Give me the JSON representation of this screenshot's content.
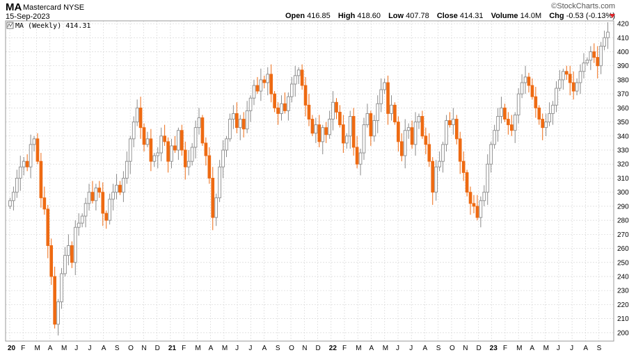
{
  "header": {
    "symbol": "MA",
    "company": "Mastercard NYSE",
    "date": "15-Sep-2023",
    "brand": "©StockCharts.com",
    "open_label": "Open",
    "open": "416.85",
    "high_label": "High",
    "high": "418.60",
    "low_label": "Low",
    "low": "407.78",
    "close_label": "Close",
    "close": "414.31",
    "volume_label": "Volume",
    "volume": "14.0M",
    "chg_label": "Chg",
    "chg": "-0.53 (-0.13%)"
  },
  "colors": {
    "up": "#8a8a8a",
    "down": "#ee6a12",
    "grid": "#d8d8d8",
    "chg": "#e0252b"
  },
  "chart_data": {
    "type": "candlestick",
    "legend": "MA (Weekly) 414.31",
    "ylim": [
      194,
      422
    ],
    "yticks": [
      200,
      210,
      220,
      230,
      240,
      250,
      260,
      270,
      280,
      290,
      300,
      310,
      320,
      330,
      340,
      350,
      360,
      370,
      380,
      390,
      400,
      410,
      420
    ],
    "grid": true,
    "xticks": [
      {
        "label": "20",
        "year": true
      },
      {
        "label": "F"
      },
      {
        "label": "M"
      },
      {
        "label": "A"
      },
      {
        "label": "M"
      },
      {
        "label": "J"
      },
      {
        "label": "J"
      },
      {
        "label": "A"
      },
      {
        "label": "S"
      },
      {
        "label": "O"
      },
      {
        "label": "N"
      },
      {
        "label": "D"
      },
      {
        "label": "21",
        "year": true
      },
      {
        "label": "F"
      },
      {
        "label": "M"
      },
      {
        "label": "A"
      },
      {
        "label": "M"
      },
      {
        "label": "J"
      },
      {
        "label": "J"
      },
      {
        "label": "A"
      },
      {
        "label": "S"
      },
      {
        "label": "O"
      },
      {
        "label": "N"
      },
      {
        "label": "D"
      },
      {
        "label": "22",
        "year": true
      },
      {
        "label": "F"
      },
      {
        "label": "M"
      },
      {
        "label": "A"
      },
      {
        "label": "M"
      },
      {
        "label": "J"
      },
      {
        "label": "J"
      },
      {
        "label": "A"
      },
      {
        "label": "S"
      },
      {
        "label": "O"
      },
      {
        "label": "N"
      },
      {
        "label": "D"
      },
      {
        "label": "23",
        "year": true
      },
      {
        "label": "F"
      },
      {
        "label": "M"
      },
      {
        "label": "A"
      },
      {
        "label": "M"
      },
      {
        "label": "J"
      },
      {
        "label": "J"
      },
      {
        "label": "A"
      },
      {
        "label": "S"
      }
    ],
    "weekly_closes": [
      294,
      300,
      310,
      318,
      322,
      318,
      334,
      338,
      322,
      296,
      288,
      262,
      240,
      206,
      222,
      242,
      255,
      262,
      250,
      275,
      278,
      283,
      292,
      300,
      294,
      303,
      300,
      285,
      280,
      295,
      300,
      305,
      300,
      310,
      322,
      338,
      350,
      360,
      346,
      334,
      338,
      322,
      326,
      328,
      340,
      336,
      322,
      333,
      330,
      344,
      330,
      318,
      322,
      332,
      346,
      353,
      335,
      326,
      310,
      282,
      296,
      318,
      330,
      338,
      352,
      356,
      346,
      352,
      345,
      358,
      367,
      376,
      372,
      380,
      378,
      384,
      370,
      360,
      356,
      363,
      358,
      368,
      377,
      383,
      387,
      376,
      362,
      352,
      342,
      348,
      336,
      346,
      341,
      352,
      364,
      357,
      348,
      335,
      340,
      354,
      332,
      320,
      328,
      348,
      356,
      340,
      351,
      363,
      373,
      378,
      356,
      362,
      350,
      336,
      326,
      344,
      346,
      334,
      350,
      354,
      340,
      334,
      322,
      300,
      318,
      322,
      334,
      351,
      348,
      352,
      338,
      322,
      314,
      300,
      292,
      290,
      282,
      294,
      300,
      320,
      334,
      344,
      354,
      360,
      352,
      348,
      344,
      355,
      370,
      378,
      382,
      376,
      368,
      360,
      352,
      346,
      350,
      356,
      362,
      374,
      380,
      386,
      384,
      378,
      372,
      378,
      386,
      392,
      394,
      400,
      396,
      390,
      404,
      410,
      414
    ]
  }
}
